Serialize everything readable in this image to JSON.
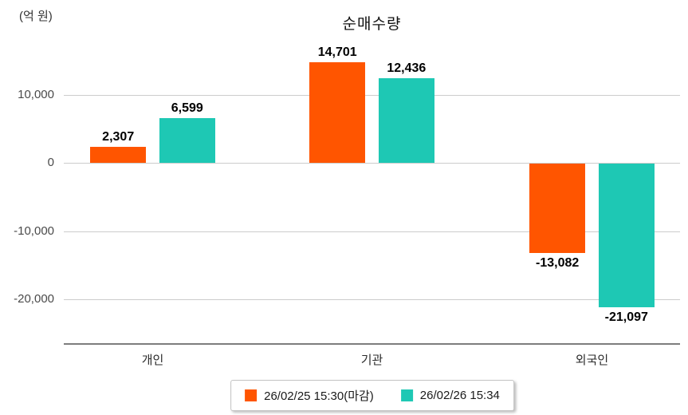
{
  "chart_data": {
    "type": "bar",
    "title": "순매수량",
    "unit_label": "(억 원)",
    "categories": [
      "개인",
      "기관",
      "외국인"
    ],
    "series": [
      {
        "name": "26/02/25 15:30(마감)",
        "color": "#FF5500",
        "values": [
          2307,
          14701,
          -13082
        ],
        "labels": [
          "2,307",
          "14,701",
          "-13,082"
        ]
      },
      {
        "name": "26/02/26 15:34",
        "color": "#1EC8B4",
        "values": [
          6599,
          12436,
          -21097
        ],
        "labels": [
          "6,599",
          "12,436",
          "-21,097"
        ]
      }
    ],
    "y_ticks": [
      {
        "value": 10000,
        "label": "10,000"
      },
      {
        "value": 0,
        "label": "0"
      },
      {
        "value": -10000,
        "label": "-10,000"
      },
      {
        "value": -20000,
        "label": "-20,000"
      }
    ],
    "ylim": [
      -26500,
      16800
    ],
    "grid": "horizontal-only",
    "legend_position": "bottom-center",
    "colors": {
      "gridline": "#CCCCCC",
      "axis_line": "#7D7D7D",
      "tick_label": "#4A4A4A",
      "value_label": "#000000",
      "background": "#FFFFFF"
    }
  }
}
